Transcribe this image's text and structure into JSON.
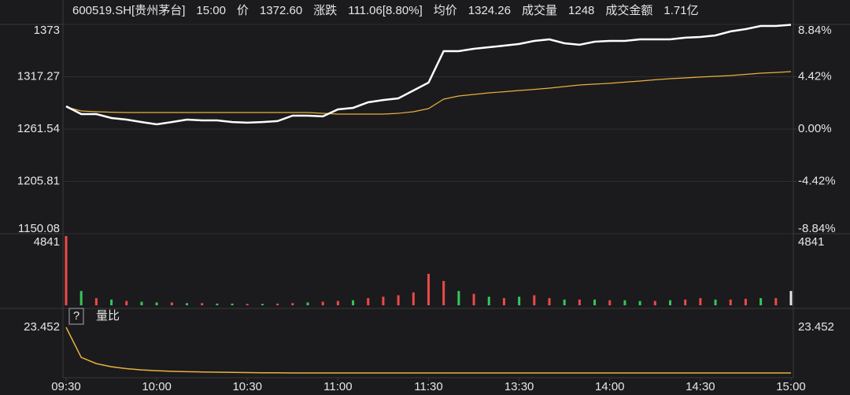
{
  "chart_data": {
    "type": "intraday",
    "header": [
      "600519.SH[贵州茅台]",
      "15:00",
      "价",
      "1372.60",
      "涨跌",
      "111.06[8.80%]",
      "均价",
      "1324.26",
      "成交量",
      "1248",
      "成交金额",
      "1.71亿"
    ],
    "header_colors": [
      "#e6e6e6",
      "#3ec1c9",
      "#e6e6e6",
      "#f04848",
      "#e6e6e6",
      "#f04848",
      "#e6e6e6",
      "#f04848",
      "#e6e6e6",
      "#e6e6e6",
      "#e6e6e6",
      "#e6e6e6"
    ],
    "xlim": [
      0,
      240
    ],
    "xticks": [
      {
        "value": 0,
        "label": "09:30"
      },
      {
        "value": 30,
        "label": "10:00"
      },
      {
        "value": 60,
        "label": "10:30"
      },
      {
        "value": 90,
        "label": "11:00"
      },
      {
        "value": 120,
        "label": "11:30"
      },
      {
        "value": 150,
        "label": "13:30"
      },
      {
        "value": 180,
        "label": "14:00"
      },
      {
        "value": 210,
        "label": "14:30"
      },
      {
        "value": 240,
        "label": "15:00"
      }
    ],
    "x": [
      0,
      5,
      10,
      15,
      20,
      25,
      30,
      35,
      40,
      45,
      50,
      55,
      60,
      65,
      70,
      75,
      80,
      85,
      90,
      95,
      100,
      105,
      110,
      115,
      120,
      125,
      130,
      135,
      140,
      145,
      150,
      155,
      160,
      165,
      170,
      175,
      180,
      185,
      190,
      195,
      200,
      205,
      210,
      215,
      220,
      225,
      230,
      235,
      240
    ],
    "series": [
      {
        "name": "价",
        "color": "#ffffff",
        "values": [
          1285.8,
          1277.5,
          1277.5,
          1273.3,
          1271.6,
          1269,
          1266.6,
          1269,
          1271.6,
          1270.8,
          1270.8,
          1269,
          1268.3,
          1269,
          1270,
          1275.8,
          1275.8,
          1275,
          1282.5,
          1284.1,
          1290,
          1292.5,
          1294.2,
          1302.6,
          1311,
          1344.5,
          1344.5,
          1347,
          1348.7,
          1350.4,
          1352.1,
          1355.4,
          1357.1,
          1352.9,
          1351.3,
          1354.6,
          1355.4,
          1355.4,
          1357.1,
          1357.1,
          1357.1,
          1358.8,
          1359.6,
          1361.3,
          1365.5,
          1368,
          1371.3,
          1371.3,
          1372.6
        ]
      },
      {
        "name": "均价",
        "color": "#e8b040",
        "values": [
          1285,
          1280.8,
          1280,
          1279.5,
          1279.1,
          1279.1,
          1279.1,
          1279.1,
          1279.1,
          1279.1,
          1279.1,
          1279.1,
          1279.1,
          1279.1,
          1279.1,
          1279.1,
          1279.1,
          1278.3,
          1277.5,
          1277.5,
          1277.5,
          1277.5,
          1278.3,
          1280,
          1283.3,
          1293.4,
          1296.7,
          1298.4,
          1300.1,
          1301.3,
          1302.6,
          1303.8,
          1305.1,
          1306.8,
          1308.5,
          1309.4,
          1310.2,
          1311.5,
          1312.7,
          1314,
          1315.2,
          1316,
          1316.9,
          1317.7,
          1318.5,
          1319.8,
          1321,
          1321.8,
          1322.7
        ]
      }
    ],
    "ylim": [
      1150.08,
      1373.0
    ],
    "yticks": [
      1373.0,
      1317.27,
      1261.54,
      1205.81,
      1150.08
    ],
    "ytick_colors": [
      "#f04848",
      "#f04848",
      "#e6e6e6",
      "#34c759",
      "#34c759"
    ],
    "y2lim": [
      -8.84,
      8.84
    ],
    "y2ticks": [
      {
        "value": 8.84,
        "label": "8.84%"
      },
      {
        "value": 4.42,
        "label": "4.42%"
      },
      {
        "value": 0,
        "label": "0.00%"
      },
      {
        "value": -4.42,
        "label": "-4.42%"
      },
      {
        "value": -8.84,
        "label": "-8.84%"
      }
    ],
    "volume": {
      "values": [
        4841,
        1000,
        500,
        400,
        300,
        250,
        200,
        200,
        150,
        150,
        120,
        120,
        100,
        100,
        120,
        150,
        200,
        250,
        300,
        350,
        500,
        600,
        700,
        900,
        2200,
        1700,
        1000,
        800,
        600,
        500,
        600,
        700,
        500,
        400,
        400,
        400,
        350,
        350,
        300,
        300,
        350,
        400,
        500,
        400,
        400,
        450,
        500,
        500,
        1000
      ],
      "colors": [
        "#f04848",
        "#34c759",
        "#f04848",
        "#34c759",
        "#f04848",
        "#34c759",
        "#34c759",
        "#f04848",
        "#34c759",
        "#f04848",
        "#34c759",
        "#34c759",
        "#f04848",
        "#34c759",
        "#f04848",
        "#f04848",
        "#34c759",
        "#f04848",
        "#f04848",
        "#34c759",
        "#f04848",
        "#f04848",
        "#f04848",
        "#f04848",
        "#f04848",
        "#f04848",
        "#34c759",
        "#f04848",
        "#34c759",
        "#f04848",
        "#34c759",
        "#f04848",
        "#f04848",
        "#34c759",
        "#f04848",
        "#34c759",
        "#f04848",
        "#34c759",
        "#34c759",
        "#f04848",
        "#34c759",
        "#f04848",
        "#f04848",
        "#34c759",
        "#f04848",
        "#f04848",
        "#34c759",
        "#f04848",
        "#e6e6e6"
      ],
      "ylim": [
        0,
        4841
      ],
      "yticks": [
        4841
      ]
    },
    "ratio": {
      "label": "量比",
      "help": "?",
      "color": "#e8b040",
      "values": [
        23.452,
        9,
        6,
        4.5,
        3.6,
        3.0,
        2.6,
        2.3,
        2.1,
        2.0,
        1.9,
        1.8,
        1.7,
        1.6,
        1.6,
        1.5,
        1.5,
        1.5,
        1.5,
        1.5,
        1.5,
        1.5,
        1.5,
        1.5,
        1.5,
        1.5,
        1.5,
        1.5,
        1.5,
        1.5,
        1.5,
        1.5,
        1.5,
        1.5,
        1.5,
        1.5,
        1.5,
        1.5,
        1.5,
        1.5,
        1.5,
        1.5,
        1.5,
        1.5,
        1.5,
        1.5,
        1.5,
        1.5,
        1.5
      ],
      "ylim": [
        0,
        23.452
      ],
      "yticks": [
        23.452
      ]
    }
  }
}
